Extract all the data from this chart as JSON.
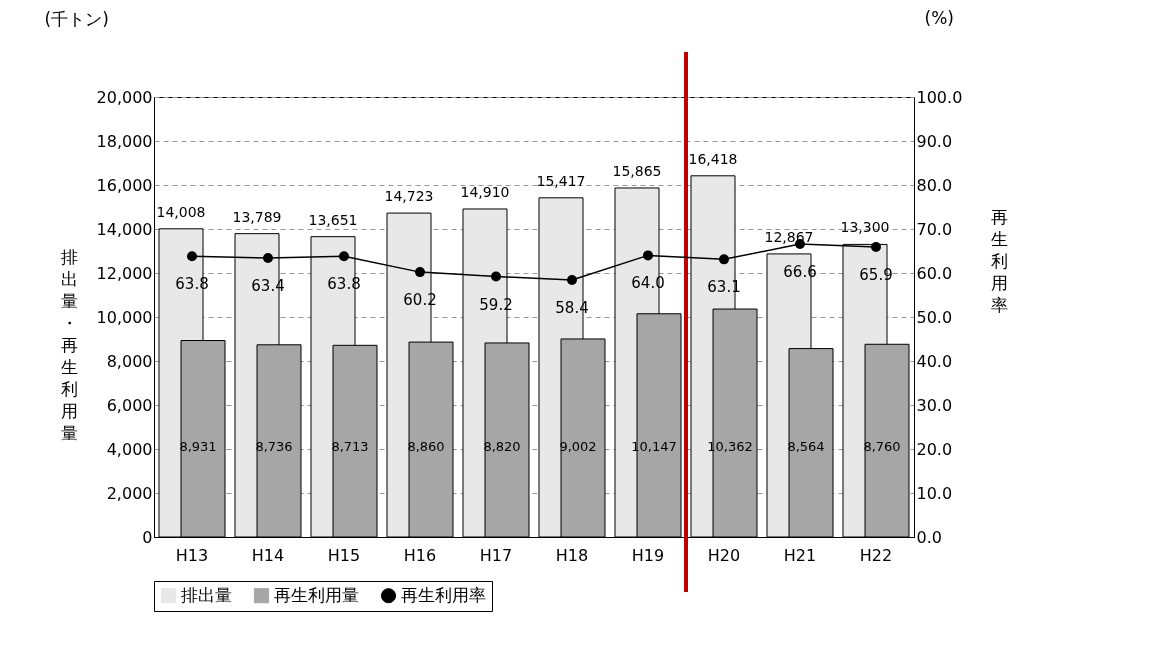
{
  "chart_data": {
    "type": "bar",
    "ylabel": "排出量・再生利用量",
    "y2label": "再生利用率",
    "annotations": [
      "(千トン)",
      "(%)"
    ],
    "categories": [
      "H13",
      "H14",
      "H15",
      "H16",
      "H17",
      "H18",
      "H19",
      "H20",
      "H21",
      "H22"
    ],
    "series": [
      {
        "name": "排出量",
        "color": "#e8e8e8",
        "values": [
          14008,
          13789,
          13651,
          14723,
          14910,
          15417,
          15865,
          16418,
          12867,
          13300
        ],
        "value_labels": [
          "14,008",
          "13,789",
          "13,651",
          "14,723",
          "14,910",
          "15,417",
          "15,865",
          "16,418",
          "12,867",
          "13,300"
        ]
      },
      {
        "name": "再生利用量",
        "color": "#a6a6a6",
        "values": [
          8931,
          8736,
          8713,
          8860,
          8820,
          9002,
          10147,
          10362,
          8564,
          8760
        ],
        "value_labels": [
          "8,931",
          "8,736",
          "8,713",
          "8,860",
          "8,820",
          "9,002",
          "10,147",
          "10,362",
          "8,564",
          "8,760"
        ]
      },
      {
        "name": "再生利用率",
        "type": "line",
        "axis": "y2",
        "color": "#000000",
        "values": [
          63.8,
          63.4,
          63.8,
          60.2,
          59.2,
          58.4,
          64.0,
          63.1,
          66.6,
          65.9
        ],
        "value_labels": [
          "63.8",
          "63.4",
          "63.8",
          "60.2",
          "59.2",
          "58.4",
          "64.0",
          "63.1",
          "66.6",
          "65.9"
        ]
      }
    ],
    "ylim": [
      0,
      20000
    ],
    "yticks": [
      0,
      {
        "value": 2000,
        "label": "2,000"
      },
      {
        "value": 4000,
        "label": "4,000"
      },
      {
        "value": 6000,
        "label": "6,000"
      },
      {
        "value": 8000,
        "label": "8,000"
      },
      {
        "value": 10000,
        "label": "10,000"
      },
      {
        "value": 12000,
        "label": "12,000"
      },
      {
        "value": 14000,
        "label": "14,000"
      },
      {
        "value": 16000,
        "label": "16,000"
      },
      {
        "value": 18000,
        "label": "18,000"
      },
      {
        "value": 20000,
        "label": "20,000"
      }
    ],
    "y2lim": [
      0,
      100
    ],
    "y2ticks": [
      {
        "value": 0,
        "label": "0.0"
      },
      {
        "value": 10,
        "label": "10.0"
      },
      {
        "value": 20,
        "label": "20.0"
      },
      {
        "value": 30,
        "label": "30.0"
      },
      {
        "value": 40,
        "label": "40.0"
      },
      {
        "value": 50,
        "label": "50.0"
      },
      {
        "value": 60,
        "label": "60.0"
      },
      {
        "value": 70,
        "label": "70.0"
      },
      {
        "value": 80,
        "label": "80.0"
      },
      {
        "value": 90,
        "label": "90.0"
      },
      {
        "value": 100,
        "label": "100.0"
      }
    ],
    "ref_lines": [
      {
        "axis": "x",
        "value": "H20",
        "color": "#c00000"
      }
    ],
    "grid": "y",
    "legend": "bottom",
    "marker": "circle",
    "line_style": "solid"
  }
}
